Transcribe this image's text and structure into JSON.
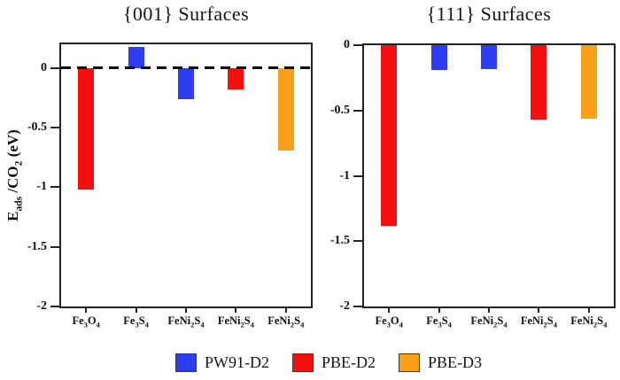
{
  "figure": {
    "y_axis": {
      "label_text": "E_ads /CO_2 (eV)",
      "label_parts": [
        "E",
        [
          "ads"
        ],
        " /CO",
        [
          "2"
        ],
        " (eV)"
      ]
    },
    "colors": {
      "PW91-D2": "#2c3df2",
      "PBE-D2": "#f3100e",
      "PBE-D3": "#f9a01b"
    },
    "legend": {
      "entries": [
        {
          "label": "PW91-D2",
          "color_key": "PW91-D2"
        },
        {
          "label": "PBE-D2",
          "color_key": "PBE-D2"
        },
        {
          "label": "PBE-D3",
          "color_key": "PBE-D3"
        }
      ]
    }
  },
  "chart_data": [
    {
      "type": "bar",
      "title": "{001} Surfaces",
      "ylabel": "E_ads /CO2 (eV)",
      "ylim": [
        -2,
        0.2
      ],
      "grid": false,
      "zero_line_dashed": true,
      "yticks": [
        {
          "label": "0",
          "value": 0
        },
        {
          "label": "-0.5",
          "value": -0.5
        },
        {
          "label": "-1",
          "value": -1
        },
        {
          "label": "-1.5",
          "value": -1.5
        },
        {
          "label": "-2",
          "value": -2
        }
      ],
      "categories": [
        "Fe3O4",
        "Fe3S4",
        "FeNi2S4",
        "FeNi2S4",
        "FeNi2S4"
      ],
      "categories_parts": [
        [
          "Fe",
          [
            "3"
          ],
          "O",
          [
            "4"
          ]
        ],
        [
          "Fe",
          [
            "3"
          ],
          "S",
          [
            "4"
          ]
        ],
        [
          "FeNi",
          [
            "2"
          ],
          "S",
          [
            "4"
          ]
        ],
        [
          "FeNi",
          [
            "2"
          ],
          "S",
          [
            "4"
          ]
        ],
        [
          "FeNi",
          [
            "2"
          ],
          "S",
          [
            "4"
          ]
        ]
      ],
      "series_colors": [
        "PBE-D2",
        "PW91-D2",
        "PW91-D2",
        "PBE-D2",
        "PBE-D3"
      ],
      "values": [
        -1.02,
        0.18,
        -0.26,
        -0.18,
        -0.69
      ]
    },
    {
      "type": "bar",
      "title": "{111} Surfaces",
      "ylabel": "E_ads /CO2 (eV)",
      "ylim": [
        -2,
        0
      ],
      "grid": false,
      "zero_line_dashed": false,
      "yticks": [
        {
          "label": "0",
          "value": 0
        },
        {
          "label": "-0.5",
          "value": -0.5
        },
        {
          "label": "-1",
          "value": -1
        },
        {
          "label": "-1.5",
          "value": -1.5
        },
        {
          "label": "-2",
          "value": -2
        }
      ],
      "categories": [
        "Fe3O4",
        "Fe3S4",
        "FeNi2S4",
        "FeNi2S4",
        "FeNi2S4"
      ],
      "categories_parts": [
        [
          "Fe",
          [
            "3"
          ],
          "O",
          [
            "4"
          ]
        ],
        [
          "Fe",
          [
            "3"
          ],
          "S",
          [
            "4"
          ]
        ],
        [
          "FeNi",
          [
            "2"
          ],
          "S",
          [
            "4"
          ]
        ],
        [
          "FeNi",
          [
            "2"
          ],
          "S",
          [
            "4"
          ]
        ],
        [
          "FeNi",
          [
            "2"
          ],
          "S",
          [
            "4"
          ]
        ]
      ],
      "series_colors": [
        "PBE-D2",
        "PW91-D2",
        "PW91-D2",
        "PBE-D2",
        "PBE-D3"
      ],
      "values": [
        -1.38,
        -0.19,
        -0.18,
        -0.57,
        -0.56
      ]
    }
  ]
}
